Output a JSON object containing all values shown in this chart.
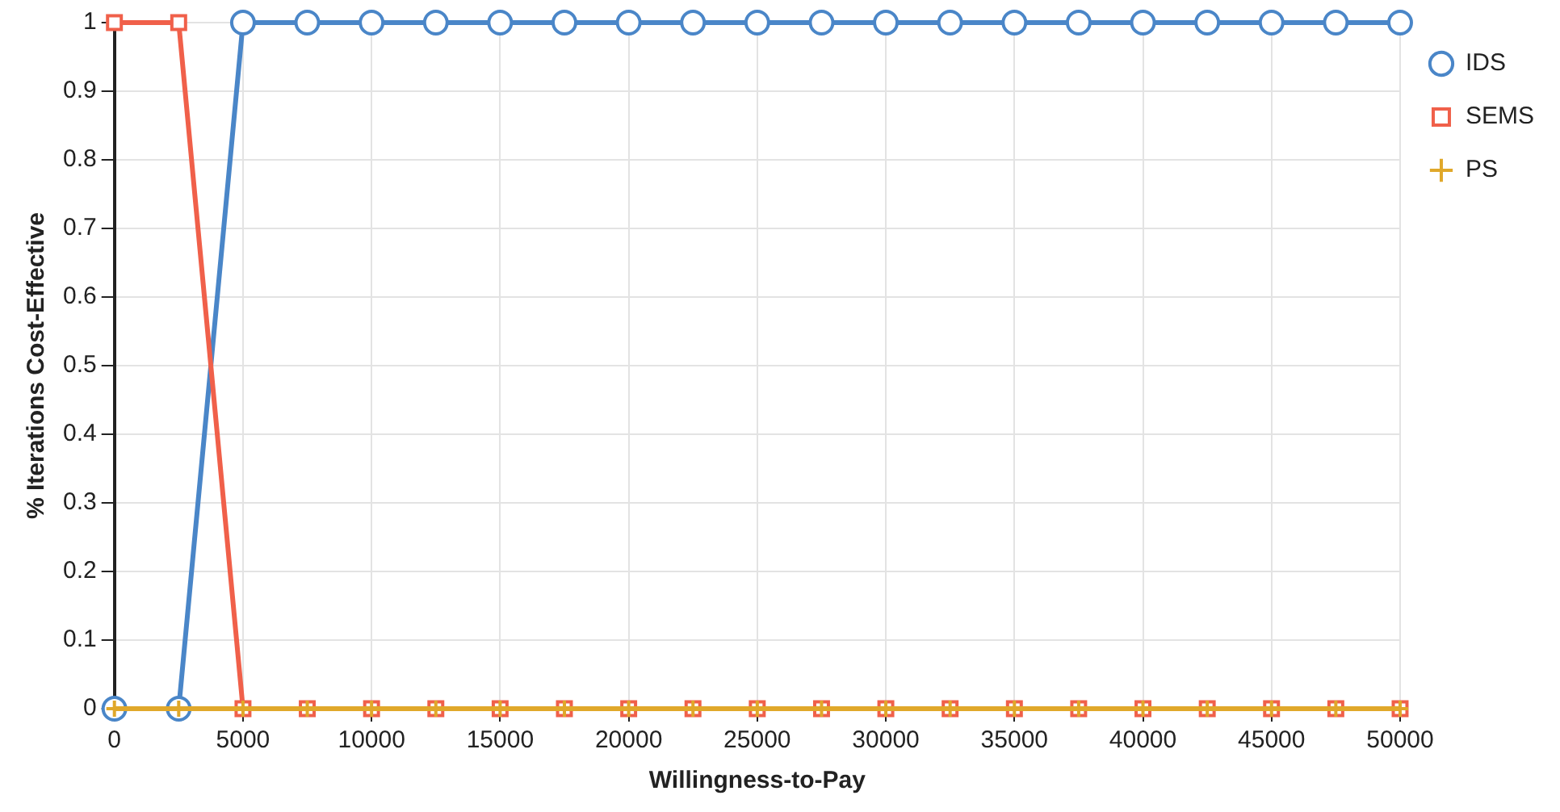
{
  "chart_data": {
    "type": "line",
    "xlabel": "Willingness-to-Pay",
    "ylabel": "% Iterations Cost-Effective",
    "x": [
      0,
      2500,
      5000,
      7500,
      10000,
      12500,
      15000,
      17500,
      20000,
      22500,
      25000,
      27500,
      30000,
      32500,
      35000,
      37500,
      40000,
      42500,
      45000,
      47500,
      50000
    ],
    "series": [
      {
        "name": "IDS",
        "color": "#4a86c8",
        "marker": "circle",
        "values": [
          0,
          0,
          1,
          1,
          1,
          1,
          1,
          1,
          1,
          1,
          1,
          1,
          1,
          1,
          1,
          1,
          1,
          1,
          1,
          1,
          1
        ]
      },
      {
        "name": "SEMS",
        "color": "#f0604a",
        "marker": "square",
        "values": [
          1,
          1,
          0,
          0,
          0,
          0,
          0,
          0,
          0,
          0,
          0,
          0,
          0,
          0,
          0,
          0,
          0,
          0,
          0,
          0,
          0
        ]
      },
      {
        "name": "PS",
        "color": "#e0a82a",
        "marker": "cross",
        "values": [
          0,
          0,
          0,
          0,
          0,
          0,
          0,
          0,
          0,
          0,
          0,
          0,
          0,
          0,
          0,
          0,
          0,
          0,
          0,
          0,
          0
        ]
      }
    ],
    "xlim": [
      0,
      50000
    ],
    "xticks": [
      0,
      5000,
      10000,
      15000,
      20000,
      25000,
      30000,
      35000,
      40000,
      45000,
      50000
    ],
    "ylim": [
      0,
      1
    ],
    "yticks": [
      0,
      0.1,
      0.2,
      0.3,
      0.4,
      0.5,
      0.6,
      0.7,
      0.8,
      0.9,
      1
    ],
    "grid": true,
    "legend": "top right",
    "line_style": "solid"
  }
}
